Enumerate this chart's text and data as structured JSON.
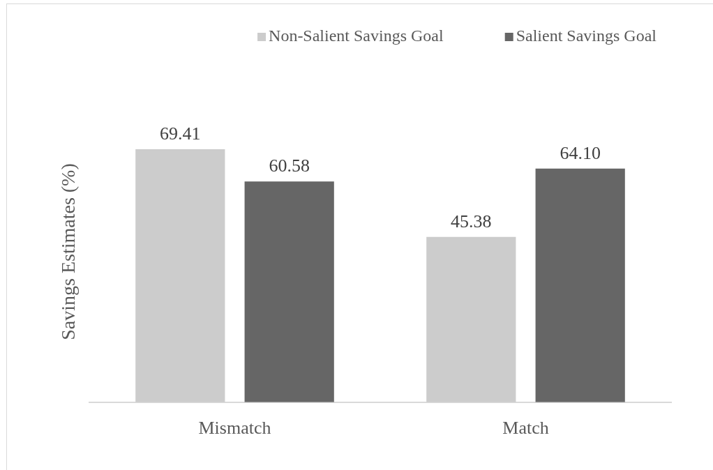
{
  "chart_data": {
    "type": "bar",
    "ylabel": "Savings Estimates (%)",
    "categories": [
      "Mismatch",
      "Match"
    ],
    "series": [
      {
        "name": "Non-Salient Savings Goal",
        "color": "#cccccc",
        "values": [
          69.41,
          45.38
        ],
        "value_labels": [
          "69.41",
          "45.38"
        ]
      },
      {
        "name": "Salient Savings Goal",
        "color": "#666666",
        "values": [
          60.58,
          64.1
        ],
        "value_labels": [
          "60.58",
          "64.10"
        ]
      }
    ],
    "legend": "top right",
    "grid": false,
    "tick_labels": "x"
  }
}
